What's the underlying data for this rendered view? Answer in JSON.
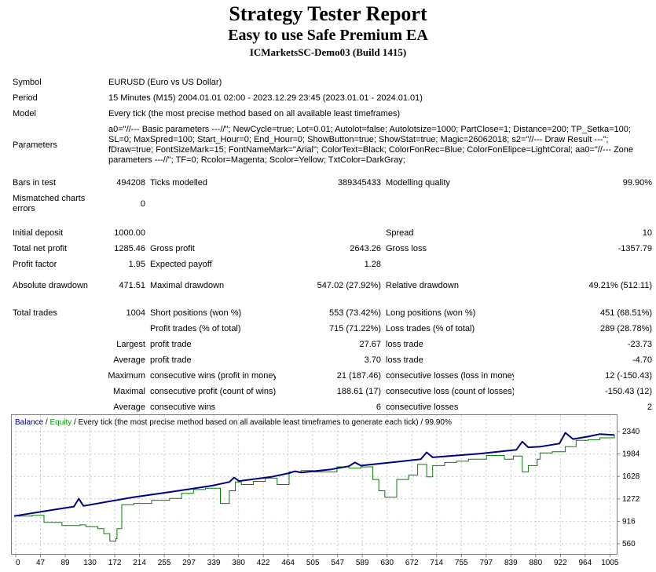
{
  "header": {
    "title": "Strategy Tester Report",
    "subtitle": "Easy to use Safe Premium EA",
    "server": "ICMarketsSC-Demo03 (Build 1415)"
  },
  "settings": {
    "symbol_label": "Symbol",
    "symbol_value": "EURUSD (Euro vs US Dollar)",
    "period_label": "Period",
    "period_value": "15 Minutes (M15) 2004.01.01 02:00 - 2023.12.29 23:45 (2023.01.01 - 2024.01.01)",
    "model_label": "Model",
    "model_value": "Every tick (the most precise method based on all available least timeframes)",
    "parameters_label": "Parameters",
    "parameters_value": "a0=\"//--- Basic parameters ---//\"; NewCycle=true; Lot=0.01; Autolot=false; Autolotsize=1000; PartClose=1; Distance=200; TP_Setka=100; SL=0; MaxSpred=100; Start_Hour=0; End_Hour=0; ShowButton=true; ShowStat=true; Magic=26062018; s2=\"//--- Draw Result ---\"; fDraw=true; FontSizeMark=15; FontNameMark=\"Arial\"; ColorText=Black; ColorFonRec=Blue; ColorFonElipce=LightCoral; aa0=\"//--- Zone parameters ---//\"; TF=0; Rcolor=Magenta; Scolor=Yellow; TxtColor=DarkGray;"
  },
  "stats": {
    "bars_label": "Bars in test",
    "bars_value": "494208",
    "ticks_label": "Ticks modelled",
    "ticks_value": "389345433",
    "quality_label": "Modelling quality",
    "quality_value": "99.90%",
    "mismatch_label": "Mismatched charts errors",
    "mismatch_value": "0",
    "deposit_label": "Initial deposit",
    "deposit_value": "1000.00",
    "spread_label": "Spread",
    "spread_value": "10",
    "netprofit_label": "Total net profit",
    "netprofit_value": "1285.46",
    "grossprofit_label": "Gross profit",
    "grossprofit_value": "2643.26",
    "grossloss_label": "Gross loss",
    "grossloss_value": "-1357.79",
    "pf_label": "Profit factor",
    "pf_value": "1.95",
    "payoff_label": "Expected payoff",
    "payoff_value": "1.28",
    "absdd_label": "Absolute drawdown",
    "absdd_value": "471.51",
    "maxdd_label": "Maximal drawdown",
    "maxdd_value": "547.02 (27.92%)",
    "reldd_label": "Relative drawdown",
    "reldd_value": "49.21% (512.11)",
    "trades_label": "Total trades",
    "trades_value": "1004",
    "short_label": "Short positions (won %)",
    "short_value": "553 (73.42%)",
    "long_label": "Long positions (won %)",
    "long_value": "451 (68.51%)",
    "ptrades_label": "Profit trades (% of total)",
    "ptrades_value": "715 (71.22%)",
    "ltrades_label": "Loss trades (% of total)",
    "ltrades_value": "289 (28.78%)",
    "largest_label": "Largest",
    "largest_profit_label": "profit trade",
    "largest_profit_value": "27.67",
    "largest_loss_label": "loss trade",
    "largest_loss_value": "-23.73",
    "average_label": "Average",
    "average_profit_label": "profit trade",
    "average_profit_value": "3.70",
    "average_loss_label": "loss trade",
    "average_loss_value": "-4.70",
    "maximum_label": "Maximum",
    "maxwins_label": "consecutive wins (profit in money)",
    "maxwins_value": "21 (187.46)",
    "maxlosses_label": "consecutive losses (loss in money)",
    "maxlosses_value": "12 (-150.43)",
    "maximal_label": "Maximal",
    "maxprofit_label": "consecutive profit (count of wins)",
    "maxprofit_value": "188.61 (17)",
    "maxloss_label": "consecutive loss (count of losses)",
    "maxloss_value": "-150.43 (12)",
    "avgcons_label": "Average",
    "avgwins_label": "consecutive wins",
    "avgwins_value": "6",
    "avglosses_label": "consecutive losses",
    "avglosses_value": "2"
  },
  "chart_data": {
    "type": "line",
    "legend": {
      "balance": "Balance",
      "sep1": " / ",
      "equity": "Equity",
      "rest": " / Every tick (the most precise method based on all available least timeframes to generate each tick) / 99.90%"
    },
    "x_ticks": [
      "0",
      "47",
      "89",
      "130",
      "172",
      "214",
      "255",
      "297",
      "339",
      "380",
      "422",
      "464",
      "505",
      "547",
      "589",
      "630",
      "672",
      "714",
      "755",
      "797",
      "839",
      "880",
      "922",
      "964",
      "1005"
    ],
    "y_ticks": [
      "2340",
      "1984",
      "1628",
      "1272",
      "916",
      "560"
    ],
    "ylim": [
      560,
      2340
    ],
    "xlim": [
      0,
      1004
    ],
    "colors": {
      "balance": "#000080",
      "equity": "#008000",
      "legend_balance": "#000080",
      "legend_equity": "#00a000"
    },
    "series": [
      {
        "name": "Balance",
        "points": [
          [
            0,
            1000
          ],
          [
            60,
            1090
          ],
          [
            100,
            1150
          ],
          [
            108,
            1275
          ],
          [
            116,
            1160
          ],
          [
            200,
            1300
          ],
          [
            260,
            1380
          ],
          [
            330,
            1480
          ],
          [
            360,
            1540
          ],
          [
            368,
            1610
          ],
          [
            376,
            1555
          ],
          [
            430,
            1620
          ],
          [
            460,
            1680
          ],
          [
            470,
            1710
          ],
          [
            480,
            1690
          ],
          [
            530,
            1740
          ],
          [
            560,
            1790
          ],
          [
            570,
            1850
          ],
          [
            580,
            1800
          ],
          [
            640,
            1860
          ],
          [
            680,
            1900
          ],
          [
            690,
            2010
          ],
          [
            700,
            1930
          ],
          [
            780,
            1990
          ],
          [
            840,
            2050
          ],
          [
            850,
            2180
          ],
          [
            860,
            2090
          ],
          [
            880,
            2100
          ],
          [
            912,
            2150
          ],
          [
            922,
            2320
          ],
          [
            935,
            2220
          ],
          [
            960,
            2260
          ],
          [
            980,
            2300
          ],
          [
            1004,
            2285
          ]
        ]
      },
      {
        "name": "Equity",
        "points": [
          [
            0,
            1000
          ],
          [
            30,
            1010
          ],
          [
            50,
            900
          ],
          [
            80,
            850
          ],
          [
            110,
            860
          ],
          [
            120,
            830
          ],
          [
            140,
            800
          ],
          [
            150,
            720
          ],
          [
            160,
            600
          ],
          [
            170,
            640
          ],
          [
            172,
            800
          ],
          [
            180,
            1180
          ],
          [
            200,
            1200
          ],
          [
            230,
            1250
          ],
          [
            260,
            1280
          ],
          [
            280,
            1360
          ],
          [
            300,
            1420
          ],
          [
            320,
            1440
          ],
          [
            345,
            1200
          ],
          [
            360,
            1400
          ],
          [
            370,
            1540
          ],
          [
            380,
            1500
          ],
          [
            400,
            1550
          ],
          [
            420,
            1600
          ],
          [
            440,
            1500
          ],
          [
            460,
            1700
          ],
          [
            480,
            1720
          ],
          [
            500,
            1700
          ],
          [
            520,
            1700
          ],
          [
            540,
            1780
          ],
          [
            560,
            1760
          ],
          [
            580,
            1780
          ],
          [
            600,
            1580
          ],
          [
            610,
            1400
          ],
          [
            620,
            1300
          ],
          [
            640,
            1580
          ],
          [
            660,
            1650
          ],
          [
            675,
            1820
          ],
          [
            690,
            1620
          ],
          [
            700,
            1800
          ],
          [
            720,
            1850
          ],
          [
            740,
            1870
          ],
          [
            760,
            1900
          ],
          [
            790,
            1960
          ],
          [
            820,
            1900
          ],
          [
            835,
            1950
          ],
          [
            850,
            1700
          ],
          [
            860,
            1800
          ],
          [
            875,
            1900
          ],
          [
            880,
            2000
          ],
          [
            900,
            2020
          ],
          [
            922,
            2100
          ],
          [
            940,
            2200
          ],
          [
            960,
            2210
          ],
          [
            980,
            2240
          ],
          [
            1004,
            2290
          ]
        ]
      }
    ]
  }
}
